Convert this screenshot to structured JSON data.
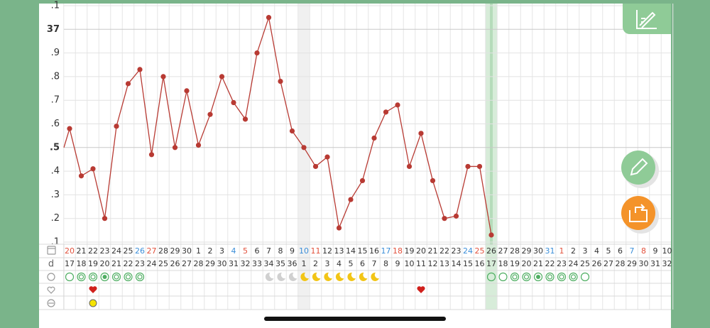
{
  "chart_data": {
    "type": "line",
    "categories": [
      "20",
      "21",
      "22",
      "23",
      "24",
      "25",
      "26",
      "27",
      "28",
      "29",
      "30",
      "1",
      "2",
      "3",
      "4",
      "5",
      "6",
      "7",
      "8",
      "9",
      "10",
      "11",
      "12",
      "13",
      "14",
      "15",
      "16",
      "17",
      "18",
      "19",
      "20",
      "21",
      "22",
      "23",
      "24",
      "25",
      "26",
      "27",
      "28",
      "29",
      "30",
      "31",
      "1",
      "2",
      "3",
      "4",
      "5",
      "6",
      "7",
      "8",
      "9",
      "10"
    ],
    "category_colors": [
      "#e2513c",
      "#333333",
      "#333333",
      "#333333",
      "#333333",
      "#333333",
      "#3b8ed8",
      "#e2513c",
      "#333333",
      "#333333",
      "#333333",
      "#333333",
      "#333333",
      "#333333",
      "#3b8ed8",
      "#e2513c",
      "#333333",
      "#333333",
      "#333333",
      "#333333",
      "#3b8ed8",
      "#e2513c",
      "#333333",
      "#333333",
      "#333333",
      "#333333",
      "#333333",
      "#3b8ed8",
      "#e2513c",
      "#333333",
      "#333333",
      "#333333",
      "#333333",
      "#333333",
      "#3b8ed8",
      "#e2513c",
      "#333333",
      "#333333",
      "#333333",
      "#333333",
      "#333333",
      "#3b8ed8",
      "#e2513c",
      "#333333",
      "#333333",
      "#333333",
      "#333333",
      "#333333",
      "#3b8ed8",
      "#e2513c",
      "#333333",
      "#333333"
    ],
    "cycle_label": "d",
    "cycle_days": [
      "17",
      "18",
      "19",
      "20",
      "21",
      "22",
      "23",
      "24",
      "25",
      "26",
      "27",
      "28",
      "29",
      "30",
      "31",
      "32",
      "33",
      "34",
      "35",
      "36",
      "1",
      "2",
      "3",
      "4",
      "5",
      "6",
      "7",
      "8",
      "9",
      "10",
      "11",
      "12",
      "13",
      "14",
      "15",
      "16",
      "17",
      "18",
      "19",
      "20",
      "21",
      "22",
      "23",
      "24",
      "25",
      "26",
      "27",
      "28",
      "29",
      "30",
      "31",
      "32"
    ],
    "series": [
      {
        "color": "#b83a33",
        "values": [
          36.58,
          36.38,
          36.41,
          36.2,
          36.59,
          36.77,
          36.83,
          36.47,
          36.8,
          36.5,
          36.74,
          36.51,
          36.64,
          36.8,
          36.69,
          36.62,
          36.9,
          37.05,
          36.78,
          36.57,
          36.5,
          36.42,
          36.46,
          36.16,
          36.28,
          36.36,
          36.54,
          36.65,
          36.68,
          36.42,
          36.56,
          36.36,
          36.2,
          36.21,
          36.42,
          36.42,
          36.13,
          null,
          null,
          null,
          null,
          null,
          null,
          null,
          null,
          null,
          null,
          null,
          null,
          null,
          null,
          null
        ]
      }
    ],
    "ylim": [
      36.1,
      37.1
    ],
    "yticks": [
      {
        "value": 36.1,
        "label": ".1"
      },
      {
        "value": 36.2,
        "label": ".2"
      },
      {
        "value": 36.3,
        "label": ".3"
      },
      {
        "value": 36.4,
        "label": ".4"
      },
      {
        "value": 36.5,
        "label": ".5"
      },
      {
        "value": 36.6,
        "label": ".6"
      },
      {
        "value": 36.7,
        "label": ".7"
      },
      {
        "value": 36.8,
        "label": ".8"
      },
      {
        "value": 36.9,
        "label": ".9"
      },
      37,
      {
        "value": 37.1,
        "label": ".1"
      }
    ],
    "grid": true
  }
}
